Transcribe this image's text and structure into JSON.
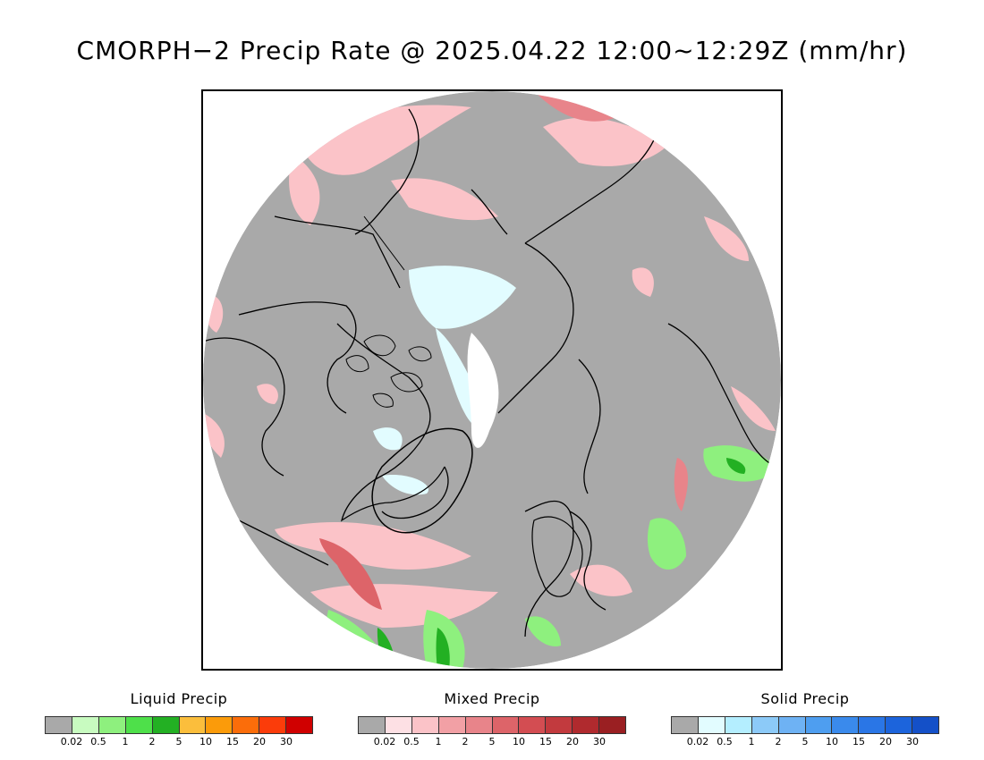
{
  "title": "CMORPH−2 Precip Rate @ 2025.04.22 12:00~12:29Z (mm/hr)",
  "map": {
    "projection": "north polar stereographic",
    "background_color": "#a9a9a9",
    "coastline_color": "#000000"
  },
  "legends": [
    {
      "id": "liquid",
      "title": "Liquid Precip",
      "colors": [
        "#a9a9a9",
        "#c8fbc0",
        "#8ef07e",
        "#4ee04a",
        "#23b023",
        "#fbbe3c",
        "#fb9b0a",
        "#fb6d0a",
        "#fb3c0a",
        "#d00000"
      ],
      "ticks": [
        "0.02",
        "0.5",
        "1",
        "2",
        "5",
        "10",
        "15",
        "20",
        "30"
      ]
    },
    {
      "id": "mixed",
      "title": "Mixed Precip",
      "colors": [
        "#a9a9a9",
        "#fde0e4",
        "#fbc3c8",
        "#f2a0a5",
        "#e8848a",
        "#dd6469",
        "#d34d52",
        "#c23a3e",
        "#b02a2e",
        "#9a1f22"
      ],
      "ticks": [
        "0.02",
        "0.5",
        "1",
        "2",
        "5",
        "10",
        "15",
        "20",
        "30"
      ]
    },
    {
      "id": "solid",
      "title": "Solid Precip",
      "colors": [
        "#a9a9a9",
        "#e2fcff",
        "#b4eeff",
        "#8ccaf8",
        "#6eb2f4",
        "#4e9ef0",
        "#3a8aec",
        "#2a76e6",
        "#1c64dc",
        "#1450c8"
      ],
      "ticks": [
        "0.02",
        "0.5",
        "1",
        "2",
        "5",
        "10",
        "15",
        "20",
        "30"
      ]
    }
  ]
}
